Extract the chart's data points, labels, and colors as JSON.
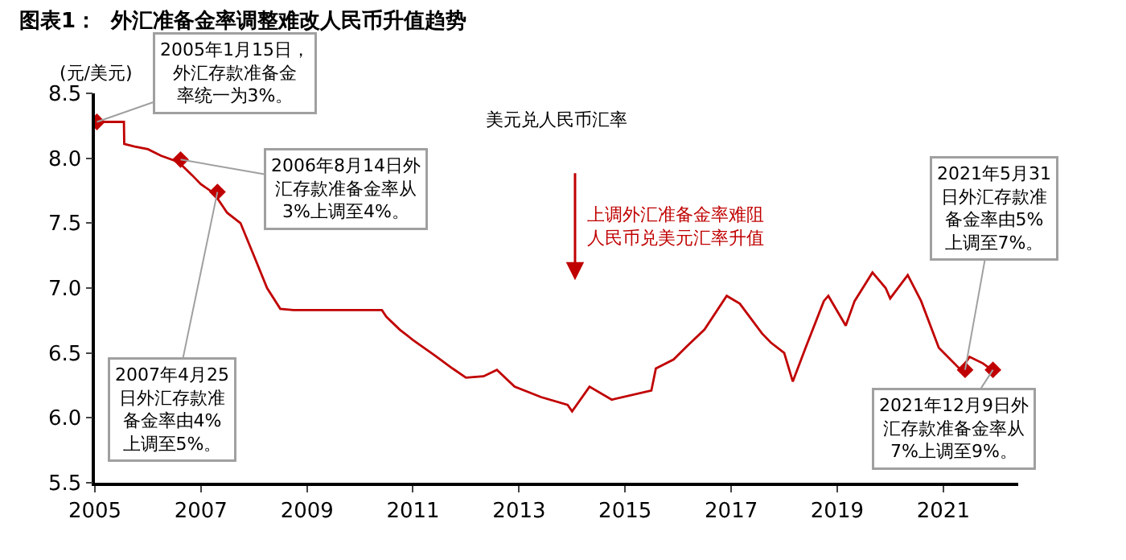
{
  "chart_data": {
    "type": "line",
    "title": "图表1：  外汇准备金率调整难改人民币升值趋势",
    "subtitle": "美元兑人民币汇率",
    "ylabel": "(元/美元)",
    "series": [
      {
        "color": "#c00000",
        "x": [
          "2005-01-01",
          "2005-07-20",
          "2005-07-22",
          "2005-10",
          "2006-01",
          "2006-04",
          "2006-08",
          "2006-11",
          "2007-01",
          "2007-04",
          "2007-07",
          "2007-10",
          "2008-01",
          "2008-04",
          "2008-07",
          "2008-10",
          "2009-06",
          "2010-01",
          "2010-06",
          "2010-07",
          "2010-10",
          "2011-01",
          "2011-06",
          "2011-10",
          "2012-01",
          "2012-05",
          "2012-08",
          "2012-12",
          "2013-06",
          "2013-12",
          "2014-01",
          "2014-05",
          "2014-10",
          "2015-07",
          "2015-08",
          "2015-12",
          "2016-03",
          "2016-07",
          "2016-12",
          "2017-03",
          "2017-08",
          "2017-10",
          "2018-01",
          "2018-03",
          "2018-06",
          "2018-10",
          "2018-11",
          "2019-03",
          "2019-05",
          "2019-09",
          "2019-12",
          "2020-01",
          "2020-05",
          "2020-08",
          "2020-12",
          "2021-02",
          "2021-05",
          "2021-07",
          "2021-10",
          "2021-12",
          "2022-01"
        ],
        "values": [
          8.28,
          8.28,
          8.11,
          8.09,
          8.07,
          8.02,
          7.97,
          7.87,
          7.8,
          7.73,
          7.58,
          7.5,
          7.25,
          7.0,
          6.84,
          6.83,
          6.83,
          6.83,
          6.83,
          6.78,
          6.68,
          6.6,
          6.48,
          6.38,
          6.31,
          6.32,
          6.37,
          6.24,
          6.16,
          6.1,
          6.05,
          6.24,
          6.14,
          6.21,
          6.38,
          6.45,
          6.55,
          6.68,
          6.94,
          6.88,
          6.65,
          6.58,
          6.5,
          6.28,
          6.55,
          6.9,
          6.94,
          6.71,
          6.9,
          7.12,
          7.0,
          6.92,
          7.1,
          6.9,
          6.54,
          6.47,
          6.37,
          6.47,
          6.42,
          6.37,
          6.36
        ]
      },
      {
        "type": "scatter",
        "color": "#c00000",
        "marker": "diamond",
        "x": [
          "2005-01-15",
          "2006-08-14",
          "2007-04-25",
          "2021-05-31",
          "2021-12-09"
        ],
        "values": [
          8.28,
          7.99,
          7.74,
          6.37,
          6.37
        ]
      }
    ],
    "xlim": [
      "2005-01-01",
      "2022-06-01"
    ],
    "xticks": [
      "2005",
      "2007",
      "2009",
      "2011",
      "2013",
      "2015",
      "2017",
      "2019",
      "2021"
    ],
    "ylim": [
      5.5,
      8.5
    ],
    "yticks": [
      {
        "value": 5.5,
        "label": "5.5"
      },
      {
        "value": 6,
        "label": "6.0"
      },
      {
        "value": 6.5,
        "label": "6.5"
      },
      {
        "value": 7,
        "label": "7.0"
      },
      {
        "value": 7.5,
        "label": "7.5"
      },
      {
        "value": 8,
        "label": "8.0"
      },
      {
        "value": 8.5,
        "label": "8.5"
      }
    ],
    "annotations": [
      {
        "text": "2005年1月15日，外汇存款准备金率统一为3%。",
        "x": "2005-01-15",
        "y": 8.28
      },
      {
        "text": "2006年8月14日外汇存款准备金率从3%上调至4%。",
        "x": "2006-08-14",
        "y": 7.99
      },
      {
        "text": "2007年4月25日外汇存款准备金率由4%上调至5%。",
        "x": "2007-04-25",
        "y": 7.74
      },
      {
        "text": "2021年5月31日外汇存款准备金率由5%上调至7%。",
        "x": "2021-05-31",
        "y": 6.37
      },
      {
        "text": "2021年12月9日外汇存款准备金率从7%上调至9%。",
        "x": "2021-12-09",
        "y": 6.37
      },
      "上调外汇准备金率难阻人民币兑美元汇率升值"
    ]
  }
}
